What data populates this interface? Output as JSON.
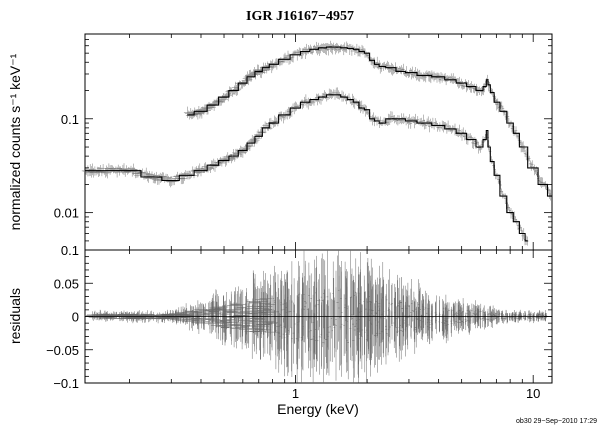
{
  "chart_data": [
    {
      "type": "line",
      "panel": "spectrum",
      "title": "IGR J16167−4957",
      "xlabel": "",
      "ylabel": "normalized counts s⁻¹ keV⁻¹",
      "xscale": "log",
      "yscale": "log",
      "xlim": [
        0.13,
        12
      ],
      "ylim": [
        0.004,
        0.8
      ],
      "x_ticks": [
        1,
        10
      ],
      "x_tick_labels": [
        "",
        ""
      ],
      "y_ticks": [
        0.01,
        0.1
      ],
      "y_tick_labels": [
        "0.01",
        "0.1"
      ],
      "series": [
        {
          "x": [
            0.35,
            0.4,
            0.45,
            0.5,
            0.55,
            0.6,
            0.65,
            0.7,
            0.75,
            0.8,
            0.9,
            1.0,
            1.1,
            1.2,
            1.3,
            1.4,
            1.5,
            1.6,
            1.7,
            1.8,
            1.9,
            2.0,
            2.1,
            2.2,
            2.3,
            2.5,
            2.8,
            3.0,
            3.5,
            4.0,
            4.5,
            5.0,
            5.5,
            6.0,
            6.3,
            6.4,
            6.5,
            6.7,
            7.0,
            7.5,
            8.0,
            8.5,
            9.0,
            10.0,
            11.0,
            12.0
          ],
          "y": [
            0.11,
            0.12,
            0.14,
            0.17,
            0.2,
            0.24,
            0.28,
            0.32,
            0.35,
            0.38,
            0.43,
            0.48,
            0.52,
            0.55,
            0.57,
            0.58,
            0.58,
            0.57,
            0.56,
            0.55,
            0.52,
            0.5,
            0.42,
            0.38,
            0.36,
            0.35,
            0.32,
            0.31,
            0.29,
            0.28,
            0.26,
            0.24,
            0.22,
            0.2,
            0.22,
            0.26,
            0.23,
            0.19,
            0.15,
            0.12,
            0.09,
            0.07,
            0.05,
            0.03,
            0.02,
            0.015
          ]
        },
        {
          "x": [
            0.13,
            0.2,
            0.25,
            0.3,
            0.35,
            0.4,
            0.45,
            0.5,
            0.55,
            0.6,
            0.65,
            0.7,
            0.75,
            0.8,
            0.9,
            1.0,
            1.1,
            1.2,
            1.3,
            1.4,
            1.5,
            1.6,
            1.7,
            1.8,
            1.9,
            2.0,
            2.1,
            2.2,
            2.3,
            2.5,
            2.8,
            3.0,
            3.5,
            4.0,
            4.5,
            5.0,
            5.5,
            6.0,
            6.3,
            6.4,
            6.5,
            6.7,
            7.0,
            7.5,
            8.0,
            8.5,
            9.0,
            9.5
          ],
          "y": [
            0.028,
            0.028,
            0.024,
            0.022,
            0.025,
            0.028,
            0.032,
            0.036,
            0.04,
            0.046,
            0.055,
            0.065,
            0.08,
            0.09,
            0.11,
            0.13,
            0.15,
            0.16,
            0.17,
            0.18,
            0.18,
            0.17,
            0.16,
            0.15,
            0.13,
            0.125,
            0.1,
            0.095,
            0.09,
            0.1,
            0.1,
            0.095,
            0.09,
            0.085,
            0.078,
            0.07,
            0.06,
            0.05,
            0.06,
            0.075,
            0.05,
            0.035,
            0.025,
            0.015,
            0.01,
            0.008,
            0.006,
            0.005
          ]
        }
      ]
    },
    {
      "type": "scatter",
      "panel": "residuals",
      "xlabel": "Energy (keV)",
      "ylabel": "residuals",
      "xscale": "log",
      "xlim": [
        0.13,
        12
      ],
      "ylim": [
        -0.1,
        0.1
      ],
      "x_ticks": [
        1,
        10
      ],
      "x_tick_labels": [
        "1",
        "10"
      ],
      "y_ticks": [
        -0.1,
        -0.05,
        0,
        0.05,
        0.1
      ],
      "y_tick_labels": [
        "−0.1",
        "−0.05",
        "0",
        "0.05",
        "0.1"
      ],
      "zero_line": 0,
      "residual_spread": [
        {
          "x": 0.3,
          "amplitude": 0.005
        },
        {
          "x": 0.6,
          "amplitude": 0.03
        },
        {
          "x": 1.0,
          "amplitude": 0.05
        },
        {
          "x": 1.5,
          "amplitude": 0.06
        },
        {
          "x": 2.0,
          "amplitude": 0.05
        },
        {
          "x": 3.0,
          "amplitude": 0.03
        },
        {
          "x": 5.0,
          "amplitude": 0.015
        },
        {
          "x": 8.0,
          "amplitude": 0.005
        }
      ]
    }
  ],
  "footer": {
    "timestamp": "ob30 29−Sep−2010 17:29"
  }
}
